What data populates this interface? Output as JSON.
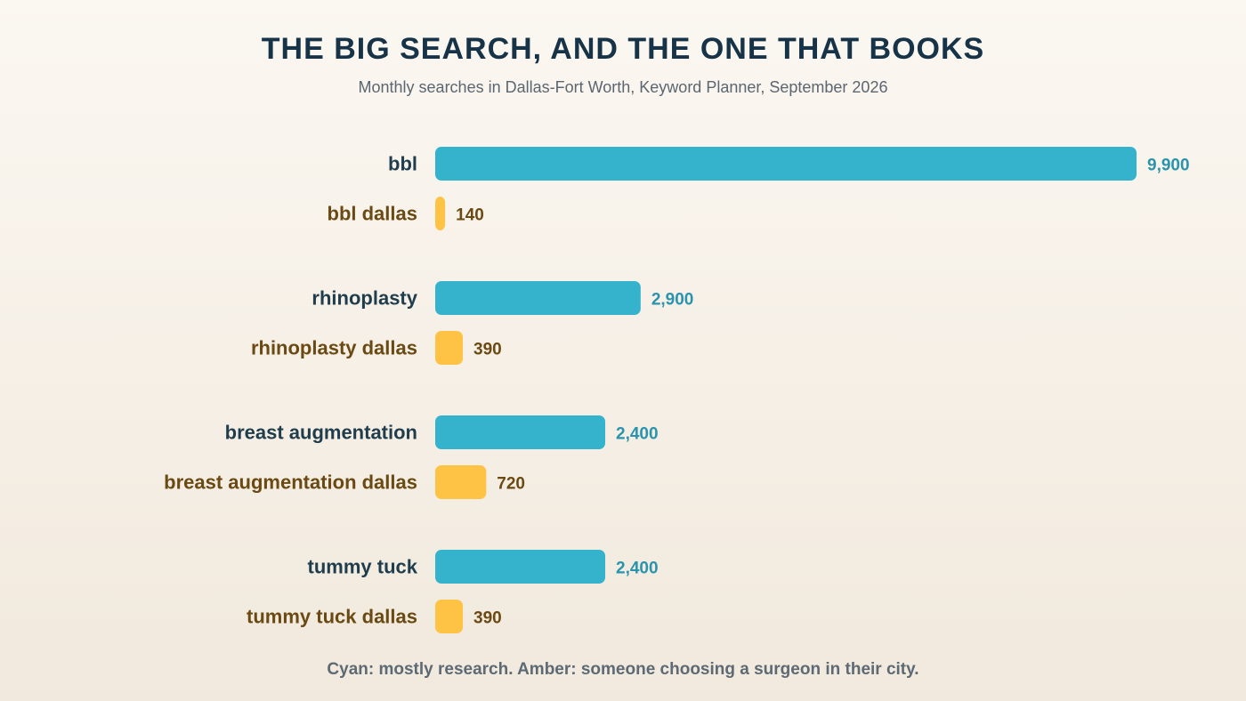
{
  "header": {
    "title": "THE BIG SEARCH, AND THE ONE THAT BOOKS",
    "subtitle": "Monthly searches in Dallas-Fort Worth, Keyword Planner, September 2026"
  },
  "footnote": "Cyan: mostly research. Amber: someone choosing a surgeon in their city.",
  "colors": {
    "broad_bar": "#35b3cd",
    "broad_label": "#1f3d4c",
    "broad_value": "#2a93ad",
    "local_bar": "#fec245",
    "local_label": "#6b4912",
    "local_value": "#6b4912"
  },
  "chart_data": {
    "type": "bar",
    "orientation": "horizontal",
    "title": "THE BIG SEARCH, AND THE ONE THAT BOOKS",
    "subtitle": "Monthly searches in Dallas-Fort Worth, Keyword Planner, September 2026",
    "xlim": [
      0,
      9900
    ],
    "grid": false,
    "categories": [
      "bbl",
      "bbl dallas",
      "rhinoplasty",
      "rhinoplasty dallas",
      "breast augmentation",
      "breast augmentation dallas",
      "tummy tuck",
      "tummy tuck dallas"
    ],
    "values": [
      9900,
      140,
      2900,
      390,
      2400,
      720,
      2400,
      390
    ],
    "value_labels": [
      "9,900",
      "140",
      "2,900",
      "390",
      "2,400",
      "720",
      "2,400",
      "390"
    ],
    "kinds": [
      "broad",
      "local",
      "broad",
      "local",
      "broad",
      "local",
      "broad",
      "local"
    ]
  }
}
